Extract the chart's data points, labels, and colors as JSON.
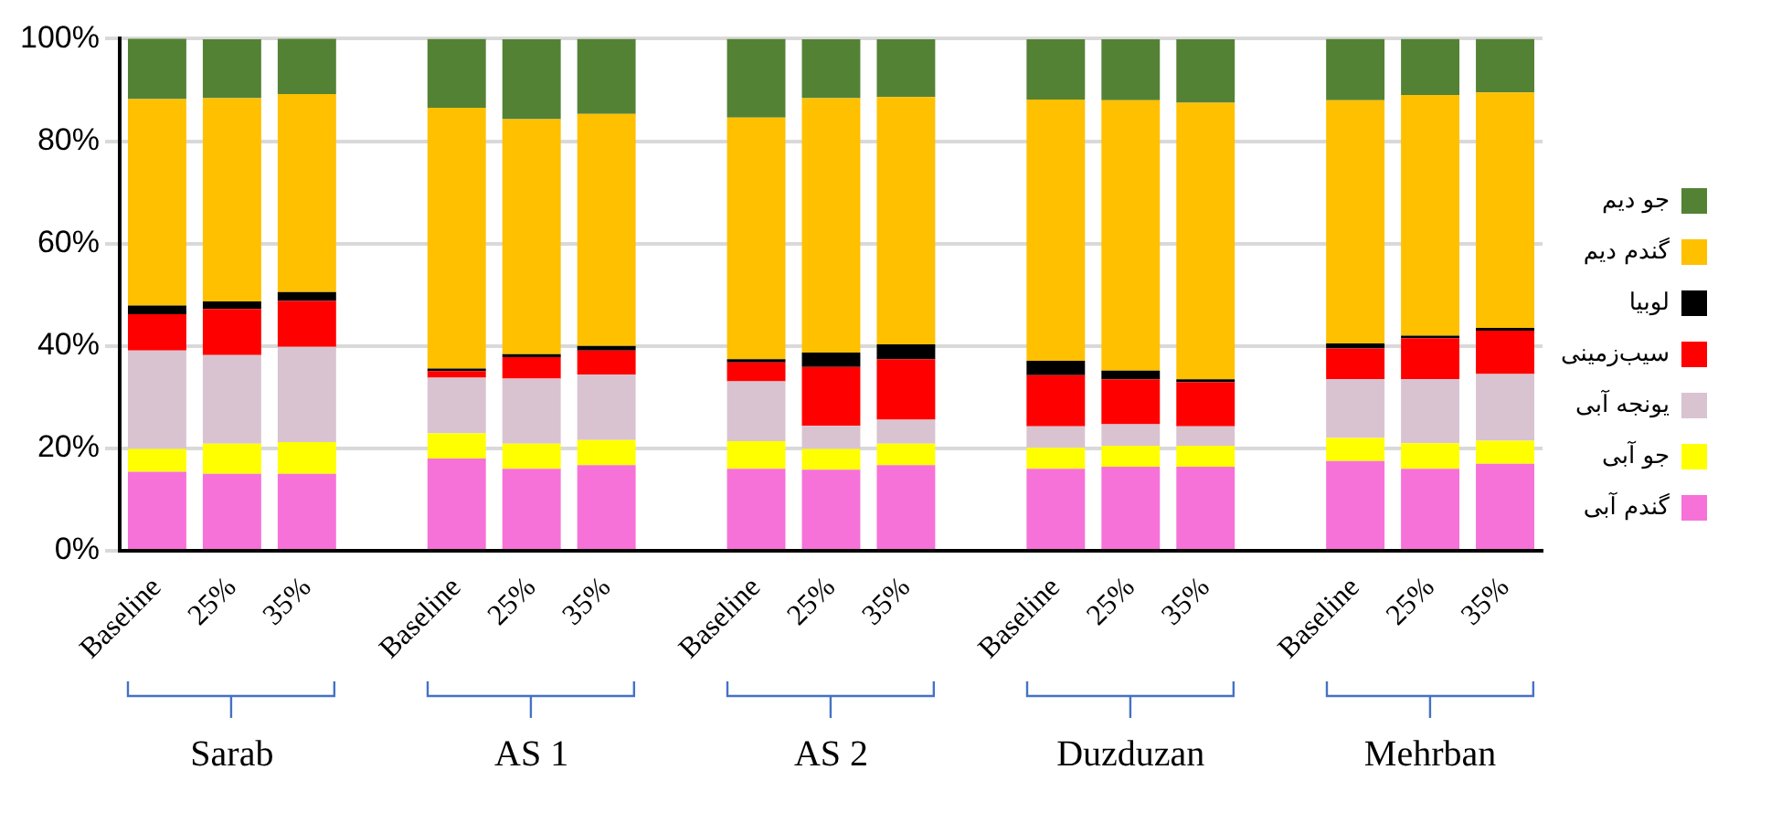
{
  "chart_data": {
    "type": "bar",
    "stacked": true,
    "categories": [
      "Baseline",
      "25%",
      "35%",
      null,
      "Baseline",
      "25%",
      "35%",
      null,
      "Baseline",
      "25%",
      "35%",
      null,
      "Baseline",
      "25%",
      "35%",
      null,
      "Baseline",
      "25%",
      "35%"
    ],
    "series": [
      {
        "name": "گندم آبی",
        "color": "#f672d8",
        "values": [
          15.4,
          15,
          15,
          null,
          18,
          16,
          16.7,
          null,
          16,
          15.8,
          16.7,
          null,
          16,
          16.4,
          16.4,
          null,
          17.5,
          16,
          17
        ]
      },
      {
        "name": "جو آبی",
        "color": "#ffff00",
        "values": [
          4.5,
          5.9,
          6.2,
          null,
          4.9,
          4.9,
          4.9,
          null,
          5.4,
          4.1,
          4.2,
          null,
          4.1,
          4.1,
          4.1,
          null,
          4.5,
          5,
          4.5
        ]
      },
      {
        "name": "یونجه آبی",
        "color": "#d9c3d1",
        "values": [
          19.2,
          17.3,
          18.6,
          null,
          10.9,
          12.7,
          12.8,
          null,
          11.7,
          4.5,
          4.7,
          null,
          4.2,
          4.2,
          3.8,
          null,
          11.5,
          12.5,
          13
        ]
      },
      {
        "name": "سیب‌زمینی",
        "color": "#ff0000",
        "values": [
          7.1,
          9,
          9,
          null,
          1.3,
          4.2,
          4.7,
          null,
          3.7,
          11.5,
          11.8,
          null,
          10,
          8.8,
          8.6,
          null,
          6,
          8,
          8.5
        ]
      },
      {
        "name": "لوبیا",
        "color": "#000000",
        "values": [
          1.7,
          1.5,
          1.7,
          null,
          0.5,
          0.6,
          0.9,
          null,
          0.6,
          2.8,
          2.9,
          null,
          2.8,
          1.7,
          0.6,
          null,
          1,
          0.5,
          0.5
        ]
      },
      {
        "name": "گندم دیم",
        "color": "#ffc000",
        "values": [
          40.3,
          39.7,
          38.7,
          null,
          50.9,
          45.9,
          45.3,
          null,
          47.2,
          49.7,
          48.3,
          null,
          51,
          52.8,
          54,
          null,
          47.5,
          47,
          46
        ]
      },
      {
        "name": "جو دیم",
        "color": "#548235",
        "values": [
          11.9,
          11.5,
          10.9,
          null,
          13.5,
          15.6,
          14.7,
          null,
          15.4,
          11.5,
          11.3,
          null,
          11.8,
          11.9,
          12.4,
          null,
          12,
          11,
          10.5
        ]
      }
    ],
    "ylim": [
      0,
      100
    ],
    "yticks": [
      {
        "value": 0,
        "label": "0%"
      },
      {
        "value": 20,
        "label": "20%"
      },
      {
        "value": 40,
        "label": "40%"
      },
      {
        "value": 60,
        "label": "60%"
      },
      {
        "value": 80,
        "label": "80%"
      },
      {
        "value": 100,
        "label": "100%"
      }
    ],
    "grid": "y",
    "legend": "right",
    "annotations": [
      "Sarab",
      "AS 1",
      "AS 2",
      "Duzduzan",
      "Mehrban"
    ]
  }
}
